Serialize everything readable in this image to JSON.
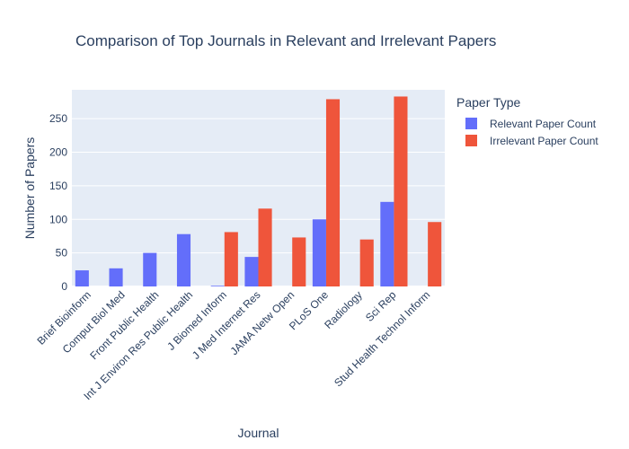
{
  "chart_data": {
    "type": "bar",
    "title": "Comparison of Top Journals in Relevant and Irrelevant Papers",
    "xlabel": "Journal",
    "ylabel": "Number of Papers",
    "ylim": [
      0,
      293
    ],
    "yticks": [
      0,
      50,
      100,
      150,
      200,
      250
    ],
    "grid": true,
    "legend_title": "Paper Type",
    "legend_position": "top-right",
    "categories": [
      "Brief Bioinform",
      "Comput Biol Med",
      "Front Public Health",
      "Int J Environ Res Public Health",
      "J Biomed Inform",
      "J Med Internet Res",
      "JAMA Netw Open",
      "PLoS One",
      "Radiology",
      "Sci Rep",
      "Stud Health Technol Inform"
    ],
    "series": [
      {
        "name": "Relevant Paper Count",
        "color": "#636efa",
        "values": [
          24,
          27,
          50,
          78,
          1,
          44,
          null,
          100,
          null,
          126,
          null
        ]
      },
      {
        "name": "Irrelevant Paper Count",
        "color": "#ef553b",
        "values": [
          null,
          null,
          null,
          null,
          81,
          116,
          73,
          279,
          70,
          283,
          96
        ]
      }
    ]
  }
}
